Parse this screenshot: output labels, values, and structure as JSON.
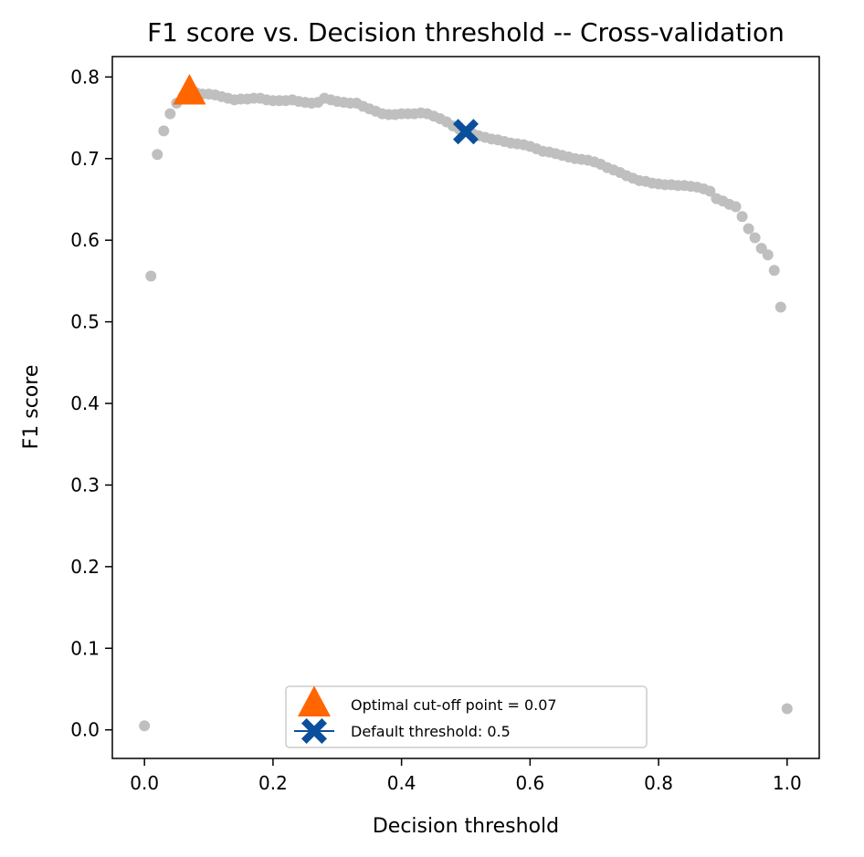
{
  "chart_data": {
    "type": "scatter",
    "title": "F1 score vs. Decision threshold -- Cross-validation",
    "xlabel": "Decision threshold",
    "ylabel": "F1 score",
    "xlim": [
      -0.05,
      1.05
    ],
    "ylim": [
      -0.035,
      0.825
    ],
    "xticks": [
      0.0,
      0.2,
      0.4,
      0.6,
      0.8,
      1.0
    ],
    "xtick_labels": [
      "0.0",
      "0.2",
      "0.4",
      "0.6",
      "0.8",
      "1.0"
    ],
    "yticks": [
      0.0,
      0.1,
      0.2,
      0.3,
      0.4,
      0.5,
      0.6,
      0.7,
      0.8
    ],
    "ytick_labels": [
      "0.0",
      "0.1",
      "0.2",
      "0.3",
      "0.4",
      "0.5",
      "0.6",
      "0.7",
      "0.8"
    ],
    "grid": false,
    "legend_position": "bottom-center",
    "colors": {
      "points": "#bfbfbf",
      "optimal": "#ff6600",
      "default": "#0b4f9c"
    },
    "series": [
      {
        "marker": "circle",
        "color": "#bfbfbf",
        "x": [
          0.0,
          0.01,
          0.02,
          0.03,
          0.04,
          0.05,
          0.06,
          0.07,
          0.08,
          0.09,
          0.1,
          0.11,
          0.12,
          0.13,
          0.14,
          0.15,
          0.16,
          0.17,
          0.18,
          0.19,
          0.2,
          0.21,
          0.22,
          0.23,
          0.24,
          0.25,
          0.26,
          0.27,
          0.28,
          0.29,
          0.3,
          0.31,
          0.32,
          0.33,
          0.34,
          0.35,
          0.36,
          0.37,
          0.38,
          0.39,
          0.4,
          0.41,
          0.42,
          0.43,
          0.44,
          0.45,
          0.46,
          0.47,
          0.48,
          0.49,
          0.5,
          0.51,
          0.52,
          0.53,
          0.54,
          0.55,
          0.56,
          0.57,
          0.58,
          0.59,
          0.6,
          0.61,
          0.62,
          0.63,
          0.64,
          0.65,
          0.66,
          0.67,
          0.68,
          0.69,
          0.7,
          0.71,
          0.72,
          0.73,
          0.74,
          0.75,
          0.76,
          0.77,
          0.78,
          0.79,
          0.8,
          0.81,
          0.82,
          0.83,
          0.84,
          0.85,
          0.86,
          0.87,
          0.88,
          0.89,
          0.9,
          0.91,
          0.92,
          0.93,
          0.94,
          0.95,
          0.96,
          0.97,
          0.98,
          0.99,
          1.0
        ],
        "y": [
          0.005,
          0.556,
          0.705,
          0.734,
          0.755,
          0.768,
          0.776,
          0.783,
          0.781,
          0.779,
          0.779,
          0.778,
          0.776,
          0.774,
          0.772,
          0.773,
          0.773,
          0.774,
          0.774,
          0.772,
          0.771,
          0.771,
          0.771,
          0.772,
          0.77,
          0.769,
          0.768,
          0.769,
          0.774,
          0.772,
          0.77,
          0.769,
          0.768,
          0.768,
          0.764,
          0.761,
          0.758,
          0.755,
          0.754,
          0.754,
          0.755,
          0.755,
          0.755,
          0.756,
          0.755,
          0.752,
          0.749,
          0.745,
          0.74,
          0.736,
          0.733,
          0.731,
          0.728,
          0.726,
          0.724,
          0.723,
          0.721,
          0.719,
          0.718,
          0.717,
          0.715,
          0.712,
          0.709,
          0.708,
          0.706,
          0.704,
          0.702,
          0.7,
          0.699,
          0.698,
          0.696,
          0.693,
          0.689,
          0.686,
          0.683,
          0.679,
          0.676,
          0.673,
          0.672,
          0.67,
          0.669,
          0.668,
          0.668,
          0.667,
          0.667,
          0.666,
          0.665,
          0.663,
          0.66,
          0.651,
          0.648,
          0.644,
          0.641,
          0.629,
          0.614,
          0.603,
          0.59,
          0.582,
          0.563,
          0.518,
          0.026
        ]
      }
    ],
    "markers": [
      {
        "name": "Optimal cut-off point = 0.07",
        "marker": "triangle",
        "color": "#ff6600",
        "x": 0.07,
        "y": 0.783
      },
      {
        "name": "Default threshold: 0.5",
        "marker": "X",
        "color": "#0b4f9c",
        "x": 0.5,
        "y": 0.733
      }
    ]
  }
}
